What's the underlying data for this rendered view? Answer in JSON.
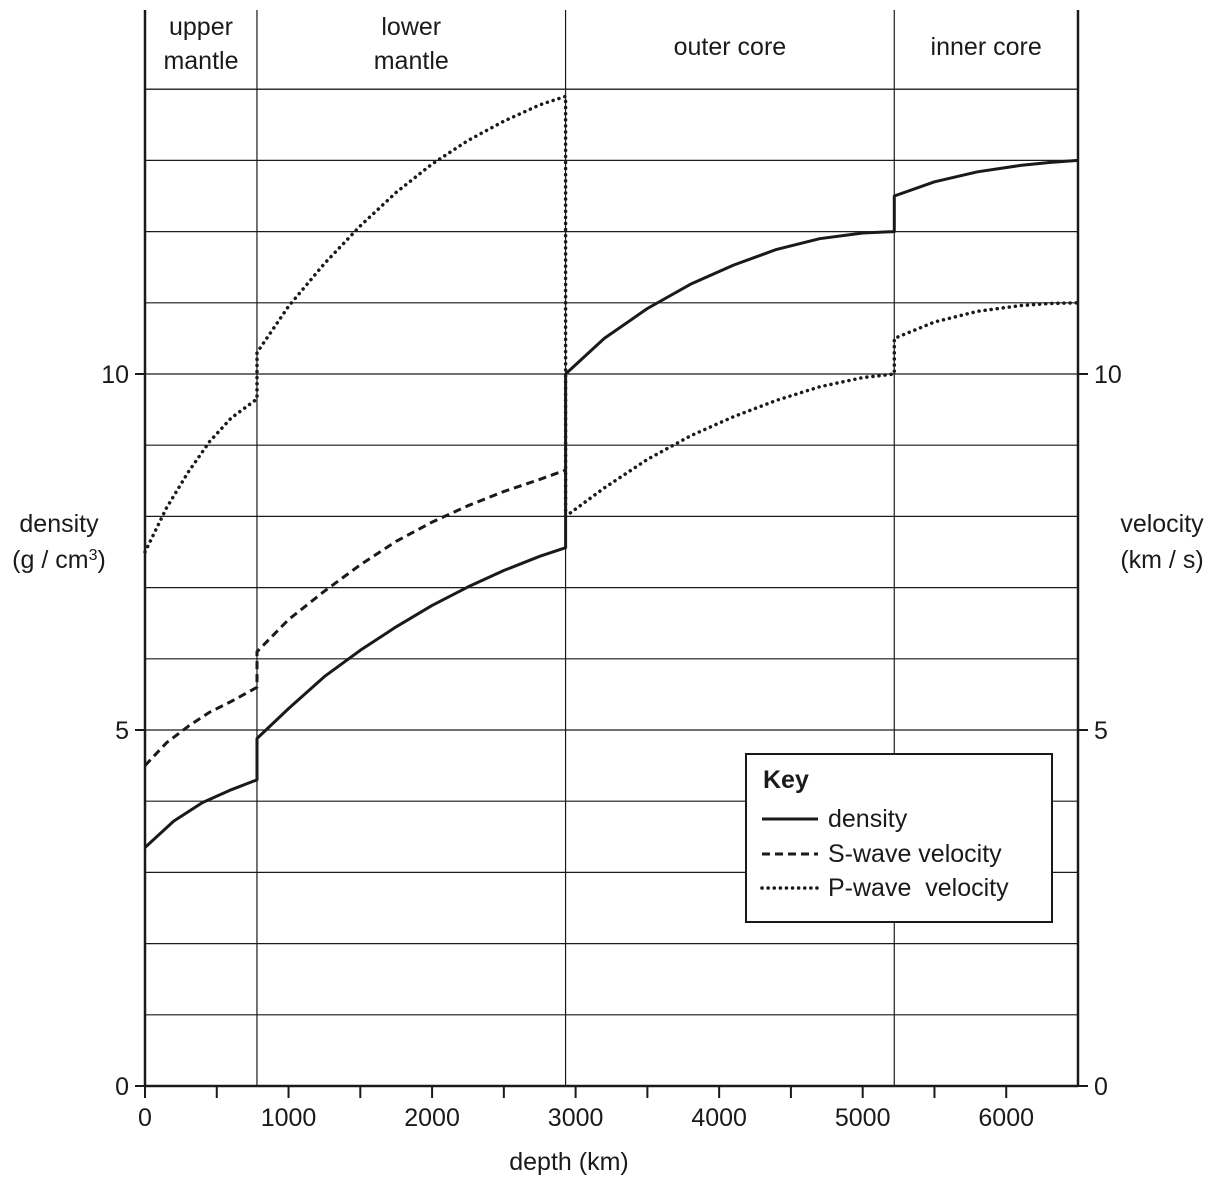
{
  "chart_data": {
    "type": "line",
    "title": "",
    "xlabel": "depth (km)",
    "ylabel_left": {
      "line1": "density",
      "line2_prefix": "(g / cm",
      "line2_sup": "3",
      "line2_suffix": ")"
    },
    "ylabel_right": {
      "line1": "velocity",
      "line2": "(km / s)"
    },
    "xlim": [
      0,
      6500
    ],
    "ylim": [
      0,
      14.5
    ],
    "x_ticks": [
      0,
      1000,
      2000,
      3000,
      4000,
      5000,
      6000
    ],
    "x_tick_labels": [
      "0",
      "1000",
      "2000",
      "3000",
      "4000",
      "5000",
      "6000"
    ],
    "x_minor_ticks": [
      500,
      1500,
      2500,
      3500,
      4500,
      5500
    ],
    "y_ticks": [
      0,
      5,
      10
    ],
    "y_tick_labels": [
      "0",
      "5",
      "10"
    ],
    "grid_y_step": 1,
    "grid": true,
    "regions": [
      {
        "label_lines": [
          "upper",
          "mantle"
        ],
        "x_start": 0,
        "x_end": 780
      },
      {
        "label_lines": [
          "lower",
          "mantle"
        ],
        "x_start": 780,
        "x_end": 2930
      },
      {
        "label_lines": [
          "outer core"
        ],
        "x_start": 2930,
        "x_end": 5220
      },
      {
        "label_lines": [
          "inner core"
        ],
        "x_start": 5220,
        "x_end": 6500
      }
    ],
    "series": [
      {
        "name": "density",
        "style": "solid",
        "x": [
          0,
          200,
          400,
          600,
          780,
          780,
          1000,
          1250,
          1500,
          1750,
          2000,
          2250,
          2500,
          2750,
          2930,
          2930,
          3200,
          3500,
          3800,
          4100,
          4400,
          4700,
          5000,
          5220,
          5220,
          5500,
          5800,
          6100,
          6300,
          6500
        ],
        "y": [
          3.35,
          3.72,
          3.98,
          4.16,
          4.3,
          4.88,
          5.3,
          5.75,
          6.12,
          6.45,
          6.75,
          7.01,
          7.24,
          7.44,
          7.56,
          10.0,
          10.5,
          10.92,
          11.26,
          11.53,
          11.75,
          11.9,
          11.98,
          12.0,
          12.5,
          12.7,
          12.84,
          12.93,
          12.97,
          13.0
        ]
      },
      {
        "name": "S-wave velocity",
        "style": "dashed",
        "x": [
          0,
          150,
          300,
          450,
          600,
          780,
          780,
          1000,
          1250,
          1500,
          1750,
          2000,
          2250,
          2500,
          2750,
          2930
        ],
        "y": [
          4.5,
          4.82,
          5.05,
          5.25,
          5.4,
          5.6,
          6.1,
          6.55,
          6.95,
          7.32,
          7.65,
          7.92,
          8.15,
          8.35,
          8.52,
          8.65
        ]
      },
      {
        "name": "P-wave velocity",
        "style": "dotted",
        "x": [
          0,
          150,
          300,
          450,
          600,
          780,
          780,
          1000,
          1250,
          1500,
          1750,
          2000,
          2250,
          2500,
          2750,
          2930,
          2930,
          2930,
          3200,
          3500,
          3800,
          4100,
          4400,
          4700,
          5000,
          5220,
          5220,
          5500,
          5800,
          6100,
          6300,
          6500
        ],
        "y": [
          7.5,
          8.12,
          8.62,
          9.05,
          9.38,
          9.65,
          10.3,
          10.95,
          11.55,
          12.08,
          12.55,
          12.95,
          13.28,
          13.55,
          13.78,
          13.9,
          8.65,
          8.0,
          8.4,
          8.8,
          9.13,
          9.4,
          9.63,
          9.82,
          9.95,
          10.0,
          10.5,
          10.73,
          10.88,
          10.96,
          10.99,
          11.0
        ]
      }
    ],
    "legend": {
      "title": "Key",
      "placement": "bottom-right",
      "entries": [
        "density",
        "S-wave velocity",
        "P-wave  velocity"
      ]
    }
  }
}
